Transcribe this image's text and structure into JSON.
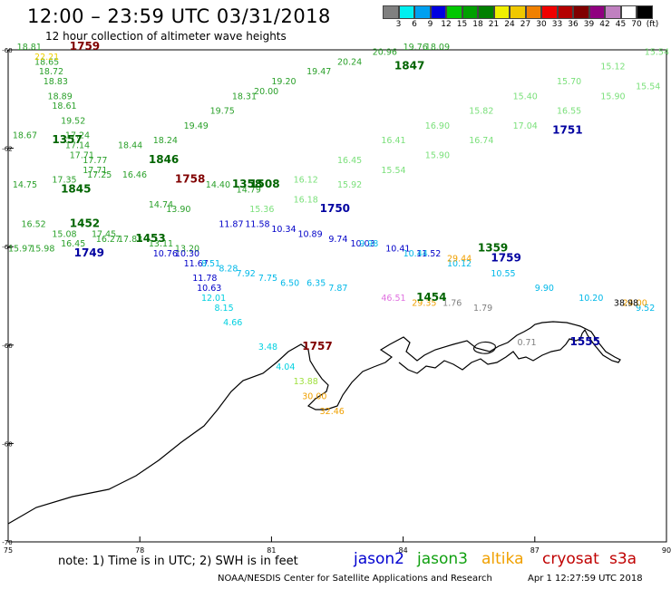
{
  "title": "12:00  –  23:59 UTC 03/31/2018",
  "subtitle": "12 hour collection of altimeter wave heights",
  "legend": {
    "colors": [
      "#808080",
      "#00f0f0",
      "#00a0f0",
      "#0000e0",
      "#00c800",
      "#00a000",
      "#008000",
      "#f0f000",
      "#f0c800",
      "#f08000",
      "#f00000",
      "#b40000",
      "#800000",
      "#900080",
      "#c080c0",
      "#ffffff",
      "#000000"
    ],
    "labels": [
      "3",
      "6",
      "9",
      "12",
      "15",
      "18",
      "21",
      "24",
      "27",
      "30",
      "33",
      "36",
      "39",
      "42",
      "45",
      "70",
      "(ft)"
    ]
  },
  "axes": {
    "x_ticks": [
      "75",
      "78",
      "81",
      "84",
      "87",
      "90"
    ],
    "y_ticks": [
      "-60",
      "-62",
      "-64",
      "-66",
      "-68",
      "-70"
    ]
  },
  "tracks": [
    {
      "sat": "jason3",
      "color": "#2aa02a",
      "points": [
        [
          75.2,
          -60.0,
          "18.81"
        ],
        [
          75.6,
          -60.3,
          "18.65"
        ],
        [
          75.7,
          -60.5,
          "18.72"
        ],
        [
          75.8,
          -60.7,
          "18.83"
        ],
        [
          75.9,
          -61.0,
          "18.89"
        ],
        [
          76.0,
          -61.2,
          "18.61"
        ],
        [
          76.2,
          -61.5,
          "19.52"
        ],
        [
          76.3,
          -61.8,
          "17.24"
        ],
        [
          76.3,
          -62.0,
          "17.14"
        ],
        [
          76.4,
          -62.2,
          "17.71"
        ],
        [
          76.7,
          -62.3,
          "17.77"
        ],
        [
          76.7,
          -62.5,
          "17.71"
        ]
      ]
    },
    {
      "sat": "jason3",
      "color": "#2aa02a",
      "points": [
        [
          75.1,
          -61.8,
          "18.67"
        ],
        [
          77.5,
          -62.0,
          "18.44"
        ],
        [
          78.3,
          -61.9,
          "18.24"
        ],
        [
          79.0,
          -61.6,
          "19.49"
        ],
        [
          79.6,
          -61.3,
          "19.75"
        ],
        [
          80.1,
          -61.0,
          "18.31"
        ],
        [
          80.6,
          -60.9,
          "20.00"
        ],
        [
          81.0,
          -60.7,
          "19.20"
        ],
        [
          81.8,
          -60.5,
          "19.47"
        ],
        [
          82.5,
          -60.3,
          "20.24"
        ],
        [
          83.3,
          -60.1,
          "20.96"
        ],
        [
          84.0,
          -60.0,
          "19.76"
        ],
        [
          84.5,
          -60.0,
          "18.09"
        ]
      ]
    },
    {
      "sat": "jason3",
      "color": "#2aa02a",
      "points": [
        [
          75.1,
          -62.8,
          "14.75"
        ],
        [
          76.0,
          -62.7,
          "17.35"
        ],
        [
          76.8,
          -62.6,
          "17.25"
        ],
        [
          77.6,
          -62.6,
          "16.46"
        ],
        [
          78.2,
          -63.2,
          "14.74"
        ],
        [
          78.6,
          -63.3,
          "13.90"
        ],
        [
          79.5,
          -62.8,
          "14.40"
        ],
        [
          80.2,
          -62.9,
          "14.79"
        ]
      ]
    },
    {
      "sat": "jason3",
      "color": "#2aa02a",
      "points": [
        [
          75.3,
          -63.6,
          "16.52"
        ],
        [
          76.0,
          -63.8,
          "15.08"
        ],
        [
          76.9,
          -63.8,
          "17.45"
        ],
        [
          77.5,
          -63.9,
          "17.83"
        ],
        [
          78.2,
          -64.0,
          "13.11"
        ],
        [
          78.8,
          -64.1,
          "13.20"
        ]
      ]
    },
    {
      "sat": "jason3",
      "color": "#2aa02a",
      "points": [
        [
          75.0,
          -64.1,
          "15.97"
        ],
        [
          75.5,
          -64.1,
          "15.98"
        ],
        [
          76.2,
          -64.0,
          "16.45"
        ],
        [
          77.0,
          -63.9,
          "16.27"
        ]
      ]
    },
    {
      "sat": "jason3",
      "color": "#7be07b",
      "points": [
        [
          80.5,
          -63.3,
          "15.36"
        ],
        [
          81.5,
          -63.1,
          "16.18"
        ],
        [
          82.5,
          -62.8,
          "15.92"
        ],
        [
          83.5,
          -62.5,
          "15.54"
        ],
        [
          84.5,
          -62.2,
          "15.90"
        ],
        [
          85.5,
          -61.9,
          "16.74"
        ],
        [
          86.5,
          -61.6,
          "17.04"
        ],
        [
          87.5,
          -61.3,
          "16.55"
        ],
        [
          88.5,
          -61.0,
          "15.90"
        ],
        [
          89.3,
          -60.8,
          "15.54"
        ]
      ]
    },
    {
      "sat": "jason3",
      "color": "#7be07b",
      "points": [
        [
          81.5,
          -62.7,
          "16.12"
        ],
        [
          82.5,
          -62.3,
          "16.45"
        ],
        [
          83.5,
          -61.9,
          "16.41"
        ],
        [
          84.5,
          -61.6,
          "16.90"
        ],
        [
          85.5,
          -61.3,
          "15.82"
        ],
        [
          86.5,
          -61.0,
          "15.40"
        ],
        [
          87.5,
          -60.7,
          "15.70"
        ],
        [
          88.5,
          -60.4,
          "15.12"
        ],
        [
          89.5,
          -60.1,
          "15.54"
        ]
      ]
    },
    {
      "sat": "jason2",
      "color": "#0000c8",
      "points": [
        [
          79.8,
          -63.6,
          "11.87"
        ],
        [
          80.4,
          -63.6,
          "11.58"
        ],
        [
          81.0,
          -63.7,
          "10.34"
        ],
        [
          81.6,
          -63.8,
          "10.89"
        ],
        [
          82.3,
          -63.9,
          "9.74"
        ],
        [
          82.8,
          -64.0,
          "10.03"
        ],
        [
          83.6,
          -64.1,
          "10.41"
        ],
        [
          84.3,
          -64.2,
          "11.52"
        ]
      ]
    },
    {
      "sat": "jason2",
      "color": "#00b8e8",
      "points": [
        [
          83.0,
          -64.0,
          "9.98"
        ],
        [
          84.0,
          -64.2,
          "10.44"
        ],
        [
          85.0,
          -64.4,
          "10.12"
        ],
        [
          86.0,
          -64.6,
          "10.55"
        ],
        [
          87.0,
          -64.9,
          "9.90"
        ],
        [
          88.0,
          -65.1,
          "10.20"
        ],
        [
          89.3,
          -65.3,
          "9.52"
        ]
      ]
    },
    {
      "sat": "jason2",
      "color": "#0000c8",
      "points": [
        [
          78.3,
          -64.2,
          "10.76"
        ],
        [
          78.8,
          -64.2,
          "10.30"
        ],
        [
          79.0,
          -64.4,
          "11.67"
        ],
        [
          79.2,
          -64.7,
          "11.78"
        ],
        [
          79.3,
          -64.9,
          "10.63"
        ]
      ]
    },
    {
      "sat": "jason2",
      "color": "#00b8e8",
      "points": [
        [
          79.4,
          -64.4,
          "8.51"
        ],
        [
          79.8,
          -64.5,
          "8.28"
        ],
        [
          80.2,
          -64.6,
          "7.92"
        ],
        [
          80.7,
          -64.7,
          "7.75"
        ],
        [
          81.2,
          -64.8,
          "6.50"
        ],
        [
          81.8,
          -64.8,
          "6.35"
        ],
        [
          82.3,
          -64.9,
          "7.87"
        ]
      ]
    },
    {
      "sat": "jason2",
      "color": "#00d0e0",
      "points": [
        [
          79.4,
          -65.1,
          "12.01"
        ],
        [
          79.7,
          -65.3,
          "8.15"
        ],
        [
          79.9,
          -65.6,
          "4.66"
        ]
      ]
    },
    {
      "sat": "altika",
      "color": "#f0a000",
      "points": [
        [
          84.2,
          -65.2,
          "29.35"
        ],
        [
          85.0,
          -64.3,
          "29.44"
        ],
        [
          89.0,
          -65.2,
          "24.00"
        ]
      ]
    },
    {
      "sat": "cryosat",
      "color": "#e070e0",
      "points": [
        [
          83.5,
          -65.1,
          "46.51"
        ]
      ]
    },
    {
      "sat": "s3a",
      "color": "#808080",
      "points": [
        [
          84.9,
          -65.2,
          "1.76"
        ],
        [
          85.6,
          -65.3,
          "1.79"
        ],
        [
          86.6,
          -66.0,
          "0.71"
        ]
      ]
    },
    {
      "sat": "jason2",
      "color": "#00d0e0",
      "points": [
        [
          80.7,
          -66.1,
          "3.48"
        ],
        [
          81.1,
          -66.5,
          "4.04"
        ]
      ]
    },
    {
      "sat": "jason3",
      "color": "#a0e040",
      "points": [
        [
          81.5,
          -66.8,
          "13.88"
        ]
      ]
    },
    {
      "sat": "altika",
      "color": "#f0a000",
      "points": [
        [
          81.7,
          -67.1,
          "30.00"
        ],
        [
          82.1,
          -67.4,
          "32.46"
        ]
      ]
    },
    {
      "sat": "cryosat",
      "color": "#f0d000",
      "points": [
        [
          75.6,
          -60.2,
          "22.21"
        ]
      ]
    },
    {
      "sat": "s3a",
      "color": "#000000",
      "points": [
        [
          88.8,
          -65.2,
          "38.98"
        ]
      ]
    }
  ],
  "pass_times": [
    {
      "text": "1759",
      "color": "#800000",
      "lon": 76.4,
      "lat": -60.0
    },
    {
      "text": "1357",
      "color": "#006400",
      "lon": 76.0,
      "lat": -61.9
    },
    {
      "text": "1846",
      "color": "#006400",
      "lon": 78.2,
      "lat": -62.3
    },
    {
      "text": "1847",
      "color": "#006400",
      "lon": 83.8,
      "lat": -60.4
    },
    {
      "text": "1845",
      "color": "#006400",
      "lon": 76.2,
      "lat": -62.9
    },
    {
      "text": "1758",
      "color": "#800000",
      "lon": 78.8,
      "lat": -62.7
    },
    {
      "text": "1358",
      "color": "#006400",
      "lon": 80.1,
      "lat": -62.8
    },
    {
      "text": "1508",
      "color": "#006400",
      "lon": 80.5,
      "lat": -62.8
    },
    {
      "text": "1452",
      "color": "#006400",
      "lon": 76.4,
      "lat": -63.6
    },
    {
      "text": "1453",
      "color": "#006400",
      "lon": 77.9,
      "lat": -63.9
    },
    {
      "text": "1749",
      "color": "#0000a0",
      "lon": 76.5,
      "lat": -64.2
    },
    {
      "text": "1750",
      "color": "#0000a0",
      "lon": 82.1,
      "lat": -63.3
    },
    {
      "text": "1751",
      "color": "#0000a0",
      "lon": 87.4,
      "lat": -61.7
    },
    {
      "text": "1359",
      "color": "#006400",
      "lon": 85.7,
      "lat": -64.1
    },
    {
      "text": "1759",
      "color": "#0000a0",
      "lon": 86.0,
      "lat": -64.3
    },
    {
      "text": "1454",
      "color": "#006400",
      "lon": 84.3,
      "lat": -65.1
    },
    {
      "text": "1757",
      "color": "#800000",
      "lon": 81.7,
      "lat": -66.1
    },
    {
      "text": "1555",
      "color": "#0000a0",
      "lon": 87.8,
      "lat": -66.0
    }
  ],
  "note": "note:  1) Time is in UTC;  2) SWH is in feet",
  "satellites": [
    {
      "name": "jason2",
      "color": "#0000d0"
    },
    {
      "name": "jason3",
      "color": "#10a010"
    },
    {
      "name": "altika",
      "color": "#f0a000"
    },
    {
      "name": "cryosat",
      "color": "#c00000"
    },
    {
      "name": "s3a",
      "color": "#c00000"
    }
  ],
  "credit": "NOAA/NESDIS Center for Satellite Applications and Research",
  "generated": "Apr  1 12:27:59 UTC 2018"
}
